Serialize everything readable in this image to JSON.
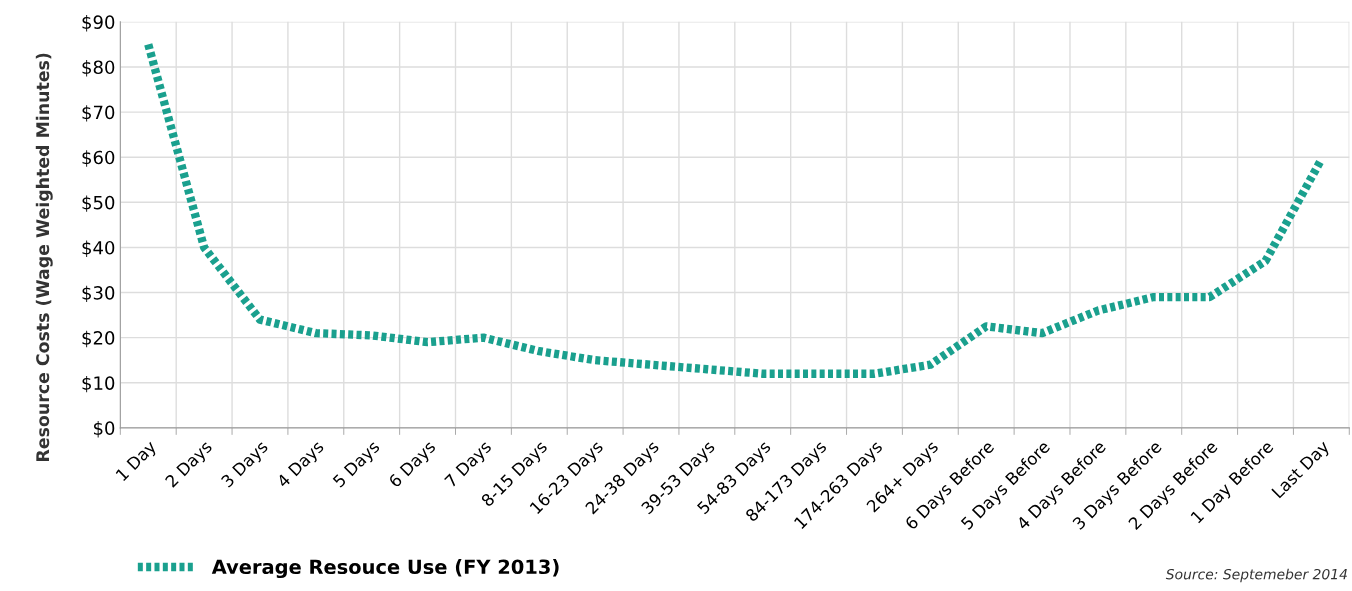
{
  "chart_data": {
    "type": "line",
    "categories": [
      "1 Day",
      "2 Days",
      "3 Days",
      "4 Days",
      "5 Days",
      "6 Days",
      "7 Days",
      "8-15 Days",
      "16-23 Days",
      "24-38 Days",
      "39-53 Days",
      "54-83 Days",
      "84-173 Days",
      "174-263 Days",
      "264+ Days",
      "6 Days Before",
      "5 Days Before",
      "4 Days Before",
      "3 Days Before",
      "2 Days Before",
      "1 Day Before",
      "Last Day"
    ],
    "series": [
      {
        "name": "Average Resouce Use (FY 2013)",
        "color": "#1aa08e",
        "values": [
          85,
          40,
          24,
          21,
          20.5,
          19,
          20,
          17,
          15,
          14,
          13,
          12,
          12,
          12,
          14,
          22.5,
          21,
          26,
          29,
          29,
          37,
          59.5
        ]
      }
    ],
    "ylabel": "Resource Costs (Wage Weighted Minutes)",
    "ylim": [
      0,
      90
    ],
    "yticks": [
      {
        "value": 0,
        "label": "$0"
      },
      {
        "value": 10,
        "label": "$10"
      },
      {
        "value": 20,
        "label": "$20"
      },
      {
        "value": 30,
        "label": "$30"
      },
      {
        "value": 40,
        "label": "$40"
      },
      {
        "value": 50,
        "label": "$50"
      },
      {
        "value": 60,
        "label": "$60"
      },
      {
        "value": 70,
        "label": "$70"
      },
      {
        "value": 80,
        "label": "$80"
      },
      {
        "value": 90,
        "label": "$90"
      }
    ],
    "grid": true,
    "legend": "bottom left",
    "line_style": "dotted",
    "annotations": [
      "Source: Septemeber 2014"
    ]
  }
}
